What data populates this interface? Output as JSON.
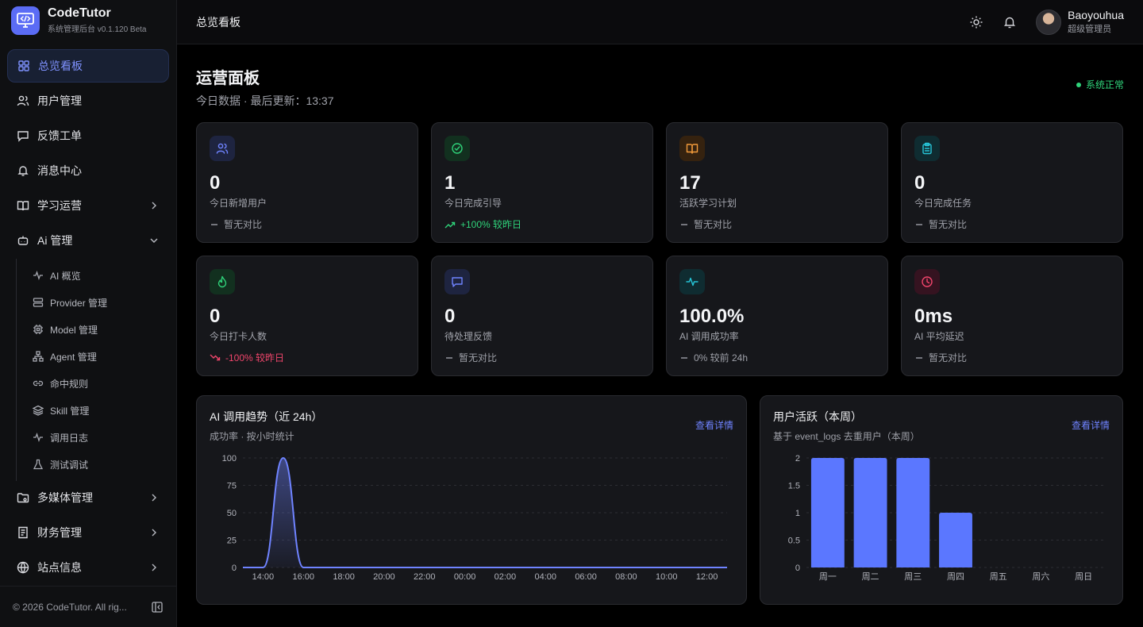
{
  "brand": {
    "name": "CodeTutor",
    "subtitle": "系统管理后台 v0.1.120 Beta"
  },
  "sidebar": {
    "items": [
      {
        "label": "总览看板",
        "icon": "grid-icon",
        "active": true
      },
      {
        "label": "用户管理",
        "icon": "users-icon"
      },
      {
        "label": "反馈工单",
        "icon": "message-icon"
      },
      {
        "label": "消息中心",
        "icon": "bell-icon"
      },
      {
        "label": "学习运营",
        "icon": "book-icon",
        "chevron": "right"
      },
      {
        "label": "Ai 管理",
        "icon": "bot-icon",
        "chevron": "down"
      }
    ],
    "ai_sub": [
      {
        "label": "AI 概览",
        "icon": "pulse-icon"
      },
      {
        "label": "Provider 管理",
        "icon": "server-icon"
      },
      {
        "label": "Model 管理",
        "icon": "chip-icon"
      },
      {
        "label": "Agent 管理",
        "icon": "network-icon"
      },
      {
        "label": "命中规则",
        "icon": "link-icon"
      },
      {
        "label": "Skill 管理",
        "icon": "layers-icon"
      },
      {
        "label": "调用日志",
        "icon": "pulse-icon"
      },
      {
        "label": "测试调试",
        "icon": "flask-icon"
      }
    ],
    "bottom_items": [
      {
        "label": "多媒体管理",
        "icon": "folder-media-icon",
        "chevron": "right"
      },
      {
        "label": "财务管理",
        "icon": "receipt-icon",
        "chevron": "right"
      },
      {
        "label": "站点信息",
        "icon": "globe-icon",
        "chevron": "right"
      }
    ],
    "footer": "© 2026 CodeTutor. All rig..."
  },
  "topbar": {
    "crumb": "总览看板",
    "user_name": "Baoyouhua",
    "user_role": "超级管理员"
  },
  "page": {
    "title": "运营面板",
    "subtitle": "今日数据 · 最后更新：13:37",
    "status": "系统正常"
  },
  "kpis": [
    {
      "value": "0",
      "label": "今日新增用户",
      "compare": "暂无对比",
      "trend": "flat",
      "icon": "users-icon",
      "color": "#6f83ff",
      "bg": "#1e2440"
    },
    {
      "value": "1",
      "label": "今日完成引导",
      "compare": "+100% 较昨日",
      "trend": "up",
      "icon": "check-circle-icon",
      "color": "#2fd37a",
      "bg": "#12301f"
    },
    {
      "value": "17",
      "label": "活跃学习计划",
      "compare": "暂无对比",
      "trend": "flat",
      "icon": "book-open-icon",
      "color": "#f29a3a",
      "bg": "#35220f"
    },
    {
      "value": "0",
      "label": "今日完成任务",
      "compare": "暂无对比",
      "trend": "flat",
      "icon": "clipboard-icon",
      "color": "#27c5d8",
      "bg": "#0f2c31"
    },
    {
      "value": "0",
      "label": "今日打卡人数",
      "compare": "-100% 较昨日",
      "trend": "down",
      "icon": "flame-icon",
      "color": "#2fd37a",
      "bg": "#12301f"
    },
    {
      "value": "0",
      "label": "待处理反馈",
      "compare": "暂无对比",
      "trend": "flat",
      "icon": "message-icon",
      "color": "#6f83ff",
      "bg": "#1e2440"
    },
    {
      "value": "100.0%",
      "label": "AI 调用成功率",
      "compare": "0% 较前 24h",
      "trend": "flat",
      "icon": "pulse-icon",
      "color": "#27c5d8",
      "bg": "#0f2c31"
    },
    {
      "value": "0ms",
      "label": "AI 平均延迟",
      "compare": "暂无对比",
      "trend": "flat",
      "icon": "clock-icon",
      "color": "#f0456b",
      "bg": "#351320"
    }
  ],
  "cards": {
    "ai_trend": {
      "title": "AI 调用趋势（近 24h）",
      "subtitle": "成功率 · 按小时统计",
      "link": "查看详情"
    },
    "user_active": {
      "title": "用户活跃（本周）",
      "subtitle": "基于 event_logs 去重用户（本周）",
      "link": "查看详情"
    }
  },
  "chart_data": [
    {
      "type": "area",
      "title": "AI 调用趋势（近 24h）",
      "x": [
        "13:00",
        "14:00",
        "15:00",
        "16:00",
        "17:00",
        "18:00",
        "19:00",
        "20:00",
        "21:00",
        "22:00",
        "23:00",
        "00:00",
        "01:00",
        "02:00",
        "03:00",
        "04:00",
        "05:00",
        "06:00",
        "07:00",
        "08:00",
        "09:00",
        "10:00",
        "11:00",
        "12:00",
        "13:00"
      ],
      "values": [
        0,
        0,
        100,
        0,
        0,
        0,
        0,
        0,
        0,
        0,
        0,
        0,
        0,
        0,
        0,
        0,
        0,
        0,
        0,
        0,
        0,
        0,
        0,
        0,
        0
      ],
      "xticks": [
        "14:00",
        "16:00",
        "18:00",
        "20:00",
        "22:00",
        "00:00",
        "02:00",
        "04:00",
        "06:00",
        "08:00",
        "10:00",
        "12:00"
      ],
      "yticks": [
        0,
        25,
        50,
        75,
        100
      ],
      "ylim": [
        0,
        100
      ],
      "grid": true,
      "color": "#6f83ff"
    },
    {
      "type": "bar",
      "title": "用户活跃（本周）",
      "categories": [
        "周一",
        "周二",
        "周三",
        "周四",
        "周五",
        "周六",
        "周日"
      ],
      "values": [
        2,
        2,
        2,
        1,
        0,
        0,
        0
      ],
      "yticks": [
        "0",
        "0.5",
        "1",
        "1.5",
        "2"
      ],
      "ylim": [
        0,
        2
      ],
      "grid": true,
      "color": "#5b77ff"
    }
  ]
}
